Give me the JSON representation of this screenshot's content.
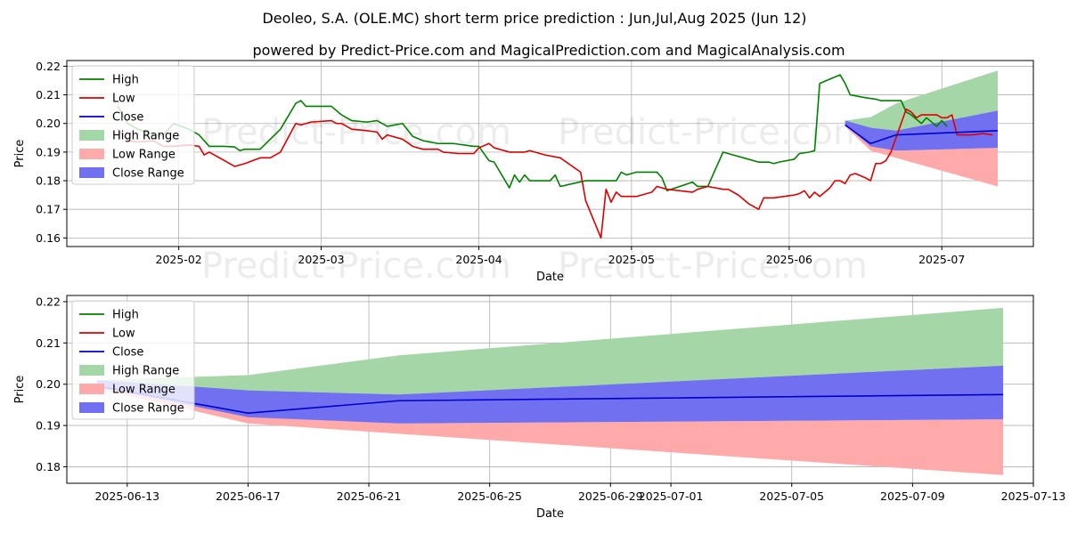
{
  "title": "Deoleo, S.A. (OLE.MC) short term price prediction : Jun,Jul,Aug 2025 (Jun 12)",
  "subtitle": "powered by Predict-Price.com and MagicalPrediction.com and MagicalAnalysis.com",
  "watermark": "Predict-Price.com",
  "colors": {
    "high": "#008000",
    "low": "#dd0000",
    "close": "#0000cc",
    "high_range": "#a5d6a7",
    "low_range": "#ffaaaa",
    "close_range": "#7070f0"
  },
  "legend": [
    "High",
    "Low",
    "Close",
    "High Range",
    "Low Range",
    "Close Range"
  ],
  "chart_data": [
    {
      "type": "line",
      "xlabel": "Date",
      "ylabel": "Price",
      "xlim": [
        "2025-01-10",
        "2025-07-19"
      ],
      "ylim": [
        0.157,
        0.222
      ],
      "yticks": [
        0.16,
        0.17,
        0.18,
        0.19,
        0.2,
        0.21,
        0.22
      ],
      "ytick_labels": [
        "0.16",
        "0.17",
        "0.18",
        "0.19",
        "0.20",
        "0.21",
        "0.22"
      ],
      "xticks": [
        "2025-02-01",
        "2025-03-01",
        "2025-04-01",
        "2025-05-01",
        "2025-06-01",
        "2025-07-01"
      ],
      "xtick_labels": [
        "2025-02",
        "2025-03",
        "2025-04",
        "2025-05",
        "2025-06",
        "2025-07"
      ],
      "series": [
        {
          "name": "High",
          "points": [
            [
              "2025-01-20",
              0.206
            ],
            [
              "2025-01-22",
              0.2
            ],
            [
              "2025-01-24",
              0.198
            ],
            [
              "2025-01-27",
              0.196
            ],
            [
              "2025-01-29",
              0.196
            ],
            [
              "2025-01-31",
              0.2
            ],
            [
              "2025-02-03",
              0.198
            ],
            [
              "2025-02-05",
              0.196
            ],
            [
              "2025-02-07",
              0.192
            ],
            [
              "2025-02-10",
              0.192
            ],
            [
              "2025-02-12",
              0.1918
            ],
            [
              "2025-02-13",
              0.1905
            ],
            [
              "2025-02-14",
              0.191
            ],
            [
              "2025-02-17",
              0.191
            ],
            [
              "2025-02-21",
              0.198
            ],
            [
              "2025-02-24",
              0.207
            ],
            [
              "2025-02-25",
              0.208
            ],
            [
              "2025-02-26",
              0.206
            ],
            [
              "2025-02-28",
              0.206
            ],
            [
              "2025-03-03",
              0.206
            ],
            [
              "2025-03-05",
              0.203
            ],
            [
              "2025-03-07",
              0.201
            ],
            [
              "2025-03-10",
              0.2005
            ],
            [
              "2025-03-12",
              0.201
            ],
            [
              "2025-03-14",
              0.199
            ],
            [
              "2025-03-17",
              0.2
            ],
            [
              "2025-03-19",
              0.1955
            ],
            [
              "2025-03-21",
              0.194
            ],
            [
              "2025-03-24",
              0.193
            ],
            [
              "2025-03-27",
              0.193
            ],
            [
              "2025-03-31",
              0.192
            ],
            [
              "2025-04-01",
              0.192
            ],
            [
              "2025-04-03",
              0.187
            ],
            [
              "2025-04-04",
              0.1865
            ],
            [
              "2025-04-07",
              0.1775
            ],
            [
              "2025-04-08",
              0.182
            ],
            [
              "2025-04-09",
              0.1795
            ],
            [
              "2025-04-10",
              0.182
            ],
            [
              "2025-04-11",
              0.18
            ],
            [
              "2025-04-14",
              0.18
            ],
            [
              "2025-04-15",
              0.18
            ],
            [
              "2025-04-16",
              0.182
            ],
            [
              "2025-04-17",
              0.178
            ],
            [
              "2025-04-22",
              0.18
            ],
            [
              "2025-04-25",
              0.18
            ],
            [
              "2025-04-28",
              0.18
            ],
            [
              "2025-04-29",
              0.183
            ],
            [
              "2025-04-30",
              0.182
            ],
            [
              "2025-05-02",
              0.183
            ],
            [
              "2025-05-06",
              0.183
            ],
            [
              "2025-05-07",
              0.181
            ],
            [
              "2025-05-08",
              0.1765
            ],
            [
              "2025-05-13",
              0.1795
            ],
            [
              "2025-05-14",
              0.178
            ],
            [
              "2025-05-16",
              0.178
            ],
            [
              "2025-05-19",
              0.19
            ],
            [
              "2025-05-21",
              0.189
            ],
            [
              "2025-05-23",
              0.188
            ],
            [
              "2025-05-26",
              0.1865
            ],
            [
              "2025-05-28",
              0.1865
            ],
            [
              "2025-05-29",
              0.186
            ],
            [
              "2025-05-30",
              0.1865
            ],
            [
              "2025-06-02",
              0.1875
            ],
            [
              "2025-06-03",
              0.1895
            ],
            [
              "2025-06-05",
              0.19
            ],
            [
              "2025-06-06",
              0.1905
            ],
            [
              "2025-06-07",
              0.214
            ],
            [
              "2025-06-09",
              0.2155
            ],
            [
              "2025-06-11",
              0.217
            ],
            [
              "2025-06-12",
              0.214
            ],
            [
              "2025-06-13",
              0.21
            ],
            [
              "2025-06-16",
              0.209
            ],
            [
              "2025-06-18",
              0.2085
            ],
            [
              "2025-06-19",
              0.208
            ],
            [
              "2025-06-20",
              0.208
            ],
            [
              "2025-06-23",
              0.208
            ],
            [
              "2025-06-24",
              0.204
            ],
            [
              "2025-06-25",
              0.203
            ],
            [
              "2025-06-27",
              0.2
            ],
            [
              "2025-06-28",
              0.202
            ],
            [
              "2025-06-30",
              0.199
            ],
            [
              "2025-07-01",
              0.201
            ],
            [
              "2025-07-02",
              0.199
            ]
          ]
        },
        {
          "name": "Low",
          "points": [
            [
              "2025-01-20",
              0.198
            ],
            [
              "2025-01-22",
              0.194
            ],
            [
              "2025-01-24",
              0.1935
            ],
            [
              "2025-01-27",
              0.194
            ],
            [
              "2025-01-29",
              0.192
            ],
            [
              "2025-01-31",
              0.192
            ],
            [
              "2025-02-03",
              0.1925
            ],
            [
              "2025-02-05",
              0.192
            ],
            [
              "2025-02-06",
              0.189
            ],
            [
              "2025-02-07",
              0.19
            ],
            [
              "2025-02-12",
              0.185
            ],
            [
              "2025-02-14",
              0.186
            ],
            [
              "2025-02-17",
              0.188
            ],
            [
              "2025-02-19",
              0.188
            ],
            [
              "2025-02-21",
              0.19
            ],
            [
              "2025-02-24",
              0.2
            ],
            [
              "2025-02-25",
              0.1995
            ],
            [
              "2025-02-27",
              0.2005
            ],
            [
              "2025-03-03",
              0.201
            ],
            [
              "2025-03-04",
              0.2
            ],
            [
              "2025-03-05",
              0.2
            ],
            [
              "2025-03-07",
              0.198
            ],
            [
              "2025-03-10",
              0.1975
            ],
            [
              "2025-03-12",
              0.197
            ],
            [
              "2025-03-13",
              0.1945
            ],
            [
              "2025-03-14",
              0.196
            ],
            [
              "2025-03-17",
              0.1945
            ],
            [
              "2025-03-19",
              0.192
            ],
            [
              "2025-03-21",
              0.191
            ],
            [
              "2025-03-24",
              0.191
            ],
            [
              "2025-03-25",
              0.19
            ],
            [
              "2025-03-28",
              0.1895
            ],
            [
              "2025-03-31",
              0.1895
            ],
            [
              "2025-04-01",
              0.1915
            ],
            [
              "2025-04-03",
              0.193
            ],
            [
              "2025-04-04",
              0.1915
            ],
            [
              "2025-04-07",
              0.19
            ],
            [
              "2025-04-10",
              0.19
            ],
            [
              "2025-04-11",
              0.1905
            ],
            [
              "2025-04-14",
              0.189
            ],
            [
              "2025-04-17",
              0.188
            ],
            [
              "2025-04-21",
              0.183
            ],
            [
              "2025-04-22",
              0.173
            ],
            [
              "2025-04-25",
              0.16
            ],
            [
              "2025-04-26",
              0.177
            ],
            [
              "2025-04-27",
              0.1725
            ],
            [
              "2025-04-28",
              0.176
            ],
            [
              "2025-04-29",
              0.1745
            ],
            [
              "2025-05-02",
              0.1745
            ],
            [
              "2025-05-05",
              0.176
            ],
            [
              "2025-05-06",
              0.178
            ],
            [
              "2025-05-08",
              0.177
            ],
            [
              "2025-05-13",
              0.176
            ],
            [
              "2025-05-14",
              0.177
            ],
            [
              "2025-05-16",
              0.178
            ],
            [
              "2025-05-19",
              0.177
            ],
            [
              "2025-05-20",
              0.177
            ],
            [
              "2025-05-22",
              0.175
            ],
            [
              "2025-05-24",
              0.172
            ],
            [
              "2025-05-26",
              0.17
            ],
            [
              "2025-05-27",
              0.174
            ],
            [
              "2025-05-29",
              0.174
            ],
            [
              "2025-06-02",
              0.175
            ],
            [
              "2025-06-03",
              0.1755
            ],
            [
              "2025-06-04",
              0.1765
            ],
            [
              "2025-06-05",
              0.174
            ],
            [
              "2025-06-06",
              0.176
            ],
            [
              "2025-06-07",
              0.1745
            ],
            [
              "2025-06-09",
              0.1775
            ],
            [
              "2025-06-10",
              0.18
            ],
            [
              "2025-06-11",
              0.18
            ],
            [
              "2025-06-12",
              0.179
            ],
            [
              "2025-06-13",
              0.182
            ],
            [
              "2025-06-14",
              0.1825
            ],
            [
              "2025-06-16",
              0.181
            ],
            [
              "2025-06-17",
              0.18
            ],
            [
              "2025-06-18",
              0.186
            ],
            [
              "2025-06-19",
              0.186
            ],
            [
              "2025-06-20",
              0.187
            ],
            [
              "2025-06-21",
              0.19
            ],
            [
              "2025-06-24",
              0.205
            ],
            [
              "2025-06-25",
              0.204
            ],
            [
              "2025-06-26",
              0.202
            ],
            [
              "2025-06-27",
              0.203
            ],
            [
              "2025-06-30",
              0.203
            ],
            [
              "2025-07-01",
              0.202
            ],
            [
              "2025-07-02",
              0.202
            ],
            [
              "2025-07-03",
              0.203
            ],
            [
              "2025-07-04",
              0.196
            ],
            [
              "2025-07-07",
              0.196
            ],
            [
              "2025-07-09",
              0.1965
            ],
            [
              "2025-07-11",
              0.196
            ]
          ]
        },
        {
          "name": "Close",
          "points": [
            [
              "2025-06-12",
              0.1995
            ],
            [
              "2025-06-17",
              0.193
            ],
            [
              "2025-06-22",
              0.196
            ],
            [
              "2025-07-12",
              0.1975
            ]
          ]
        }
      ]
    },
    {
      "type": "line",
      "xlabel": "Date",
      "ylabel": "Price",
      "xlim": [
        "2025-06-11",
        "2025-07-13"
      ],
      "ylim": [
        0.176,
        0.2215
      ],
      "yticks": [
        0.18,
        0.19,
        0.2,
        0.21,
        0.22
      ],
      "ytick_labels": [
        "0.18",
        "0.19",
        "0.20",
        "0.21",
        "0.22"
      ],
      "xticks": [
        "2025-06-13",
        "2025-06-17",
        "2025-06-21",
        "2025-06-25",
        "2025-06-29",
        "2025-07-01",
        "2025-07-05",
        "2025-07-09",
        "2025-07-13"
      ],
      "xtick_labels": [
        "2025-06-13",
        "2025-06-17",
        "2025-06-21",
        "2025-06-25",
        "2025-06-29",
        "2025-07-01",
        "2025-07-05",
        "2025-07-09",
        "2025-07-13"
      ],
      "series": [
        {
          "name": "Close",
          "points": [
            [
              "2025-06-12",
              0.1995
            ],
            [
              "2025-06-17",
              0.193
            ],
            [
              "2025-06-22",
              0.196
            ],
            [
              "2025-07-12",
              0.1975
            ]
          ]
        }
      ]
    }
  ],
  "forecast_ranges": {
    "dates": [
      "2025-06-12",
      "2025-06-17",
      "2025-06-22",
      "2025-07-12"
    ],
    "high_range": {
      "lower": [
        0.2,
        0.1985,
        0.1975,
        0.2045
      ],
      "upper": [
        0.201,
        0.2022,
        0.207,
        0.2185
      ]
    },
    "close_range": {
      "lower": [
        0.1995,
        0.192,
        0.1905,
        0.1915
      ],
      "upper": [
        0.201,
        0.1985,
        0.1975,
        0.2045
      ]
    },
    "low_range": {
      "lower": [
        0.199,
        0.1905,
        0.188,
        0.178
      ],
      "upper": [
        0.2,
        0.1925,
        0.1905,
        0.1915
      ]
    }
  }
}
